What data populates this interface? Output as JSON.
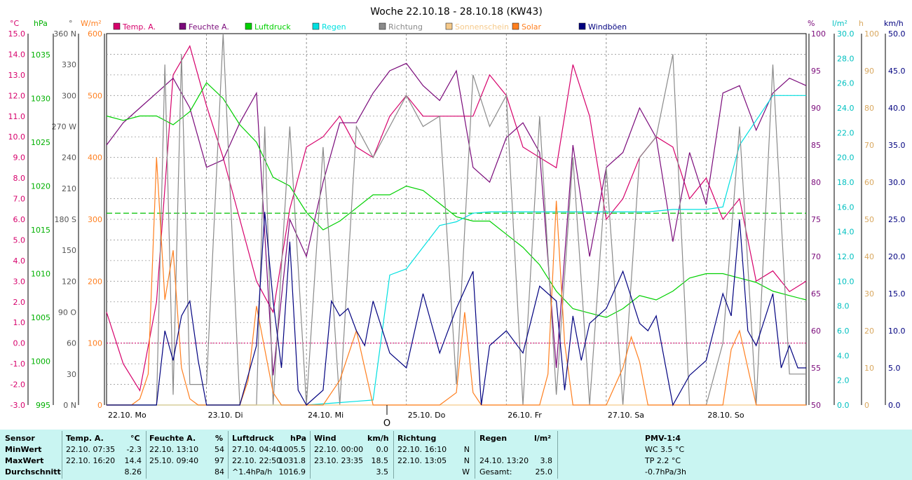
{
  "title": "Woche 22.10.18 - 28.10.18 (KW43)",
  "legend": [
    {
      "name": "Temp. A.",
      "color": "#d6006b"
    },
    {
      "name": "Feuchte A.",
      "color": "#7a0a7a"
    },
    {
      "name": "Luftdruck",
      "color": "#00d000"
    },
    {
      "name": "Regen",
      "color": "#00e0e0"
    },
    {
      "name": "Richtung",
      "color": "#8a8a8a"
    },
    {
      "name": "Sonnenschein",
      "color": "#f5c98a"
    },
    {
      "name": "Solar",
      "color": "#ff7f1f"
    },
    {
      "name": "Windböen",
      "color": "#00007f"
    }
  ],
  "axis_units": {
    "temp": "°C",
    "pressure": "hPa",
    "direction": "°",
    "solar": "W/m²",
    "humidity": "%",
    "rain": "l/m²",
    "sun": "h",
    "wind": "km/h"
  },
  "axes": {
    "temp": [
      15.0,
      14.0,
      13.0,
      12.0,
      11.0,
      10.0,
      9.0,
      8.0,
      7.0,
      6.0,
      5.0,
      4.0,
      3.0,
      2.0,
      1.0,
      0.0,
      -1.0,
      -2.0,
      -3.0
    ],
    "temp_labels": [
      "15.0",
      "14.0",
      "13.0",
      "12.0",
      "11.0",
      "10.0",
      "9.0",
      "8.0",
      "7.0",
      "6.0",
      "5.0",
      "4.0",
      "3.0",
      "2.0",
      "1.0",
      "0.0",
      "-1.0",
      "-2.0",
      "-3.0"
    ],
    "pressure_labels": [
      "1035",
      "1030",
      "1025",
      "1020",
      "1015",
      "1010",
      "1005",
      "1000",
      "995"
    ],
    "direction_labels": [
      "360 N",
      "330",
      "300",
      "270 W",
      "240",
      "210",
      "180 S",
      "150",
      "120",
      "90 O",
      "60",
      "30",
      "0 N"
    ],
    "solar_labels": [
      "600",
      "500",
      "400",
      "300",
      "200",
      "100",
      "0"
    ],
    "humidity_labels": [
      "100",
      "95",
      "90",
      "85",
      "80",
      "75",
      "70",
      "65",
      "60",
      "55",
      "50"
    ],
    "rain_labels": [
      "30.0",
      "28.0",
      "26.0",
      "24.0",
      "22.0",
      "20.0",
      "18.0",
      "16.0",
      "14.0",
      "12.0",
      "10.0",
      "8.0",
      "6.0",
      "4.0",
      "2.0",
      "0.0"
    ],
    "sun_labels": [
      "100",
      "90",
      "80",
      "70",
      "60",
      "50",
      "40",
      "30",
      "20",
      "10",
      "0"
    ],
    "wind_labels": [
      "50.0",
      "45.0",
      "40.0",
      "35.0",
      "30.0",
      "25.0",
      "20.0",
      "15.0",
      "10.0",
      "5.0",
      "0.0"
    ],
    "days": [
      "22.10. Mo",
      "23.10. Di",
      "24.10. Mi",
      "25.10. Do",
      "26.10. Fr",
      "27.10. Sa",
      "28.10. So"
    ]
  },
  "chart_data": {
    "type": "line",
    "title": "Woche 22.10.18 - 28.10.18 (KW43)",
    "x_hours_from": "22.10. 00:00",
    "average_pressure_line": 1016.9,
    "series": [
      {
        "name": "Temp. A.",
        "axis": "temp",
        "color": "#d6006b",
        "x": [
          0,
          4,
          8,
          12,
          16,
          20,
          24,
          28,
          32,
          36,
          40,
          44,
          48,
          52,
          56,
          60,
          64,
          68,
          72,
          76,
          80,
          84,
          88,
          92,
          96,
          100,
          104,
          108,
          112,
          116,
          120,
          124,
          128,
          132,
          136,
          140,
          144,
          148,
          152,
          156,
          160,
          164,
          168
        ],
        "y": [
          1.5,
          -1.0,
          -2.3,
          2.0,
          13.0,
          14.4,
          11.5,
          9.0,
          6.0,
          3.0,
          1.5,
          6.5,
          9.5,
          10.0,
          11.0,
          9.5,
          9.0,
          11.0,
          12.0,
          11.0,
          11.0,
          11.0,
          11.0,
          13.0,
          12.0,
          9.5,
          9.0,
          8.5,
          13.5,
          11.0,
          6.0,
          7.0,
          9.0,
          10.0,
          9.5,
          7.0,
          8.0,
          6.0,
          7.0,
          3.0,
          3.5,
          2.5,
          3.0
        ]
      },
      {
        "name": "Feuchte A.",
        "axis": "humidity",
        "color": "#7a0a7a",
        "x": [
          0,
          4,
          8,
          12,
          16,
          20,
          24,
          28,
          32,
          36,
          40,
          44,
          48,
          52,
          56,
          60,
          64,
          68,
          72,
          76,
          80,
          84,
          88,
          92,
          96,
          100,
          104,
          108,
          112,
          116,
          120,
          124,
          128,
          132,
          136,
          140,
          144,
          148,
          152,
          156,
          160,
          164,
          168
        ],
        "y": [
          85,
          88,
          90,
          92,
          94,
          90,
          82,
          83,
          88,
          92,
          54,
          75,
          70,
          80,
          88,
          88,
          92,
          95,
          96,
          93,
          91,
          95,
          82,
          80,
          86,
          88,
          84,
          55,
          85,
          70,
          82,
          84,
          90,
          86,
          72,
          84,
          77,
          92,
          93,
          87,
          92,
          94,
          93
        ]
      },
      {
        "name": "Luftdruck",
        "axis": "pressure",
        "color": "#00d000",
        "x": [
          0,
          4,
          8,
          12,
          16,
          20,
          24,
          28,
          32,
          36,
          40,
          44,
          48,
          52,
          56,
          60,
          64,
          68,
          72,
          76,
          80,
          84,
          88,
          92,
          96,
          100,
          104,
          108,
          112,
          116,
          120,
          124,
          128,
          132,
          136,
          140,
          144,
          148,
          152,
          156,
          160,
          164,
          168
        ],
        "y": [
          1028,
          1027.5,
          1028,
          1028,
          1027,
          1028.5,
          1031.8,
          1030,
          1027,
          1025,
          1021,
          1020,
          1017,
          1015,
          1016,
          1017.5,
          1019,
          1019,
          1020,
          1019.5,
          1018,
          1016.5,
          1016,
          1016,
          1014.5,
          1013,
          1011,
          1008,
          1006,
          1005.5,
          1005,
          1006,
          1007.5,
          1007,
          1008,
          1009.5,
          1010,
          1010,
          1009.5,
          1009,
          1008,
          1007.5,
          1007
        ]
      },
      {
        "name": "Regen",
        "axis": "rain",
        "color": "#00e0e0",
        "x": [
          0,
          48,
          56,
          60,
          64,
          68,
          72,
          80,
          84,
          88,
          92,
          96,
          104,
          108,
          116,
          124,
          130,
          136,
          144,
          148,
          152,
          160,
          168
        ],
        "y": [
          0,
          0,
          0.2,
          0.3,
          0.4,
          10.5,
          11.0,
          14.5,
          14.8,
          15.5,
          15.6,
          15.6,
          15.6,
          15.6,
          15.6,
          15.6,
          15.6,
          15.8,
          15.8,
          16.0,
          21.0,
          25.0,
          25.0
        ]
      },
      {
        "name": "Richtung",
        "axis": "direction",
        "color": "#8a8a8a",
        "x": [
          0,
          4,
          8,
          12,
          14,
          16,
          18,
          20,
          24,
          28,
          32,
          36,
          38,
          40,
          44,
          48,
          52,
          56,
          60,
          64,
          68,
          72,
          76,
          80,
          84,
          88,
          92,
          96,
          100,
          104,
          108,
          112,
          116,
          120,
          124,
          128,
          132,
          136,
          140,
          144,
          148,
          152,
          156,
          160,
          164,
          168
        ],
        "y": [
          0,
          0,
          0,
          0,
          330,
          10,
          340,
          20,
          20,
          360,
          0,
          0,
          270,
          0,
          270,
          0,
          250,
          0,
          270,
          240,
          270,
          300,
          270,
          280,
          20,
          320,
          270,
          300,
          0,
          280,
          10,
          240,
          0,
          230,
          0,
          240,
          260,
          340,
          0,
          0,
          60,
          270,
          0,
          330,
          30,
          30
        ]
      },
      {
        "name": "Sonnenschein",
        "axis": "sun",
        "color": "#f5c98a",
        "x": [
          0,
          168
        ],
        "y": [
          0,
          0
        ]
      },
      {
        "name": "Solar",
        "axis": "solar",
        "color": "#ff7f1f",
        "x": [
          0,
          6,
          8,
          10,
          12,
          14,
          16,
          18,
          20,
          22,
          24,
          28,
          32,
          34,
          36,
          38,
          40,
          42,
          44,
          48,
          52,
          56,
          58,
          60,
          62,
          64,
          66,
          68,
          72,
          76,
          80,
          84,
          86,
          88,
          90,
          92,
          96,
          100,
          104,
          106,
          108,
          110,
          112,
          114,
          116,
          120,
          124,
          126,
          128,
          130,
          132,
          136,
          140,
          144,
          148,
          150,
          152,
          154,
          156,
          160,
          164,
          168
        ],
        "y": [
          0,
          0,
          10,
          50,
          400,
          170,
          250,
          60,
          10,
          0,
          0,
          0,
          0,
          40,
          160,
          90,
          20,
          0,
          0,
          0,
          0,
          40,
          80,
          120,
          60,
          0,
          0,
          0,
          0,
          0,
          0,
          20,
          150,
          20,
          0,
          0,
          0,
          0,
          0,
          50,
          330,
          100,
          0,
          0,
          0,
          0,
          60,
          110,
          70,
          0,
          0,
          0,
          0,
          0,
          0,
          90,
          120,
          60,
          0,
          0,
          0,
          0
        ]
      },
      {
        "name": "Windböen",
        "axis": "wind",
        "color": "#00007f",
        "x": [
          0,
          4,
          8,
          12,
          14,
          16,
          18,
          20,
          22,
          24,
          26,
          28,
          32,
          36,
          38,
          40,
          42,
          44,
          46,
          48,
          52,
          54,
          56,
          58,
          60,
          62,
          64,
          68,
          72,
          76,
          80,
          84,
          88,
          90,
          92,
          96,
          100,
          104,
          108,
          110,
          112,
          114,
          116,
          120,
          124,
          128,
          130,
          132,
          136,
          140,
          144,
          148,
          150,
          152,
          154,
          156,
          160,
          162,
          164,
          166,
          168
        ],
        "y": [
          0,
          0,
          0,
          0,
          10,
          6,
          12,
          14,
          6,
          0,
          0,
          0,
          0,
          8,
          26,
          14,
          5,
          22,
          2,
          0,
          2,
          14,
          12,
          13,
          10,
          8,
          14,
          7,
          5,
          15,
          7,
          13,
          18,
          0,
          8,
          10,
          7,
          16,
          14,
          2,
          12,
          6,
          11,
          13,
          18,
          11,
          10,
          12,
          0,
          4,
          6,
          15,
          12,
          25,
          10,
          8,
          15,
          5,
          8,
          5,
          5
        ]
      }
    ]
  },
  "table": {
    "sensor": {
      "header": "Sensor",
      "rows": [
        "MinWert",
        "MaxWert",
        "Durchschnitt"
      ]
    },
    "temp": {
      "header": "Temp. A.",
      "unit": "°C",
      "min_time": "22.10.  07:35",
      "min": "-2.3",
      "max_time": "22.10.  16:20",
      "max": "14.4",
      "avg": "8.26"
    },
    "humidity": {
      "header": "Feuchte A.",
      "unit": "%",
      "min_time": "22.10.  13:10",
      "min": "54",
      "max_time": "25.10.  09:40",
      "max": "97",
      "avg": "84"
    },
    "pressure": {
      "header": "Luftdruck",
      "unit": "hPa",
      "min_time": "27.10.  04:40",
      "min": "1005.5",
      "max_time": "22.10.  22:50",
      "max": "1031.8",
      "avg_label": "^1.4hPa/h",
      "avg": "1016.9"
    },
    "wind": {
      "header": "Wind",
      "unit": "km/h",
      "min_time": "22.10.  00:00",
      "min": "0.0",
      "max_time": "23.10.  23:35",
      "max": "18.5",
      "avg": "3.5"
    },
    "direction": {
      "header": "Richtung",
      "min_time": "22.10.  16:10",
      "min": "N",
      "max_time": "22.10.  13:05",
      "max": "N",
      "avg": "W"
    },
    "rain": {
      "header": "Regen",
      "unit": "l/m²",
      "max_time": "24.10.  13:20",
      "max": "3.8",
      "total_label": "Gesamt:",
      "total": "25.0"
    },
    "pmv": {
      "header": "PMV-1:4",
      "wc": "WC 3.5 °C",
      "tp": "TP 2.2 °C",
      "trend": "-0.7hPa/3h"
    }
  },
  "now_marker": "O"
}
